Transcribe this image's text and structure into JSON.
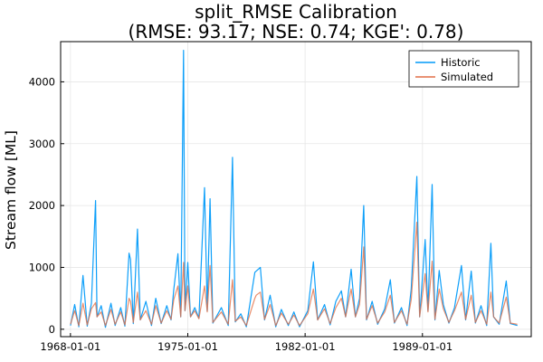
{
  "chart_data": {
    "type": "line",
    "title": "split_RMSE Calibration",
    "subtitle": "(RMSE: 93.17; NSE: 0.74; KGE': 0.78)",
    "xlabel": "",
    "ylabel": "Stream flow [ML]",
    "x_type": "date",
    "xlim": [
      "1967-06-01",
      "1995-06-30"
    ],
    "ylim": [
      -120,
      4650
    ],
    "x_ticks": [
      "1968-01-01",
      "1975-01-01",
      "1982-01-01",
      "1989-01-01"
    ],
    "x_tick_labels": [
      "1968-01-01",
      "1975-01-01",
      "1982-01-01",
      "1989-01-01"
    ],
    "y_ticks": [
      0,
      1000,
      2000,
      3000,
      4000
    ],
    "y_tick_labels": [
      "0",
      "1000",
      "2000",
      "3000",
      "4000"
    ],
    "grid": true,
    "legend": "top-right",
    "series": [
      {
        "name": "Historic",
        "color": "#009af9",
        "points": [
          [
            "1968-01-01",
            60
          ],
          [
            "1968-04-01",
            400
          ],
          [
            "1968-07-01",
            40
          ],
          [
            "1968-10-01",
            870
          ],
          [
            "1969-01-01",
            50
          ],
          [
            "1969-04-01",
            420
          ],
          [
            "1969-07-01",
            2080
          ],
          [
            "1969-08-01",
            200
          ],
          [
            "1969-11-01",
            380
          ],
          [
            "1970-02-01",
            30
          ],
          [
            "1970-06-01",
            420
          ],
          [
            "1970-09-01",
            60
          ],
          [
            "1971-01-01",
            350
          ],
          [
            "1971-04-01",
            50
          ],
          [
            "1971-07-01",
            1230
          ],
          [
            "1971-08-01",
            1130
          ],
          [
            "1971-10-01",
            90
          ],
          [
            "1972-01-01",
            1620
          ],
          [
            "1972-03-01",
            150
          ],
          [
            "1972-07-01",
            450
          ],
          [
            "1972-11-01",
            60
          ],
          [
            "1973-02-01",
            500
          ],
          [
            "1973-06-01",
            90
          ],
          [
            "1973-10-01",
            380
          ],
          [
            "1974-01-01",
            150
          ],
          [
            "1974-03-01",
            640
          ],
          [
            "1974-06-01",
            1220
          ],
          [
            "1974-08-01",
            200
          ],
          [
            "1974-10-01",
            4510
          ],
          [
            "1974-11-01",
            300
          ],
          [
            "1975-01-01",
            1080
          ],
          [
            "1975-03-01",
            200
          ],
          [
            "1975-06-01",
            350
          ],
          [
            "1975-09-01",
            180
          ],
          [
            "1976-01-01",
            2290
          ],
          [
            "1976-03-01",
            300
          ],
          [
            "1976-05-01",
            2110
          ],
          [
            "1976-07-01",
            100
          ],
          [
            "1977-01-01",
            350
          ],
          [
            "1977-06-01",
            60
          ],
          [
            "1977-09-01",
            2780
          ],
          [
            "1977-11-01",
            120
          ],
          [
            "1978-03-01",
            250
          ],
          [
            "1978-07-01",
            40
          ],
          [
            "1979-01-01",
            920
          ],
          [
            "1979-02-01",
            940
          ],
          [
            "1979-05-01",
            1000
          ],
          [
            "1979-08-01",
            150
          ],
          [
            "1979-12-01",
            550
          ],
          [
            "1980-04-01",
            40
          ],
          [
            "1980-08-01",
            320
          ],
          [
            "1981-01-01",
            60
          ],
          [
            "1981-05-01",
            280
          ],
          [
            "1981-09-01",
            40
          ],
          [
            "1982-03-01",
            300
          ],
          [
            "1982-07-01",
            1090
          ],
          [
            "1982-10-01",
            150
          ],
          [
            "1983-03-01",
            400
          ],
          [
            "1983-07-01",
            70
          ],
          [
            "1983-11-01",
            450
          ],
          [
            "1984-03-01",
            620
          ],
          [
            "1984-06-01",
            200
          ],
          [
            "1984-10-01",
            970
          ],
          [
            "1985-01-01",
            200
          ],
          [
            "1985-04-01",
            500
          ],
          [
            "1985-07-01",
            2000
          ],
          [
            "1985-09-01",
            150
          ],
          [
            "1986-01-01",
            450
          ],
          [
            "1986-05-01",
            80
          ],
          [
            "1986-10-01",
            330
          ],
          [
            "1987-02-01",
            800
          ],
          [
            "1987-05-01",
            100
          ],
          [
            "1987-10-01",
            350
          ],
          [
            "1988-02-01",
            60
          ],
          [
            "1988-05-01",
            650
          ],
          [
            "1988-09-01",
            2470
          ],
          [
            "1988-11-01",
            200
          ],
          [
            "1989-03-01",
            1450
          ],
          [
            "1989-05-01",
            300
          ],
          [
            "1989-08-01",
            2340
          ],
          [
            "1989-10-01",
            150
          ],
          [
            "1990-01-01",
            950
          ],
          [
            "1990-04-01",
            400
          ],
          [
            "1990-08-01",
            100
          ],
          [
            "1990-12-01",
            350
          ],
          [
            "1991-05-01",
            1030
          ],
          [
            "1991-08-01",
            150
          ],
          [
            "1991-12-01",
            940
          ],
          [
            "1992-03-01",
            100
          ],
          [
            "1992-07-01",
            380
          ],
          [
            "1992-11-01",
            60
          ],
          [
            "1993-02-01",
            1390
          ],
          [
            "1993-04-01",
            200
          ],
          [
            "1993-08-01",
            80
          ],
          [
            "1994-01-01",
            780
          ],
          [
            "1994-04-01",
            90
          ],
          [
            "1994-09-01",
            60
          ]
        ]
      },
      {
        "name": "Simulated",
        "color": "#e26f46",
        "points": [
          [
            "1968-01-01",
            80
          ],
          [
            "1968-04-01",
            300
          ],
          [
            "1968-07-01",
            60
          ],
          [
            "1968-10-01",
            420
          ],
          [
            "1969-01-01",
            70
          ],
          [
            "1969-04-01",
            330
          ],
          [
            "1969-07-01",
            430
          ],
          [
            "1969-08-01",
            200
          ],
          [
            "1969-11-01",
            280
          ],
          [
            "1970-02-01",
            60
          ],
          [
            "1970-06-01",
            320
          ],
          [
            "1970-09-01",
            80
          ],
          [
            "1971-01-01",
            280
          ],
          [
            "1971-04-01",
            70
          ],
          [
            "1971-07-01",
            500
          ],
          [
            "1971-08-01",
            450
          ],
          [
            "1971-10-01",
            110
          ],
          [
            "1972-01-01",
            600
          ],
          [
            "1972-03-01",
            150
          ],
          [
            "1972-07-01",
            300
          ],
          [
            "1972-11-01",
            80
          ],
          [
            "1973-02-01",
            380
          ],
          [
            "1973-06-01",
            100
          ],
          [
            "1973-10-01",
            300
          ],
          [
            "1974-01-01",
            160
          ],
          [
            "1974-03-01",
            480
          ],
          [
            "1974-06-01",
            700
          ],
          [
            "1974-08-01",
            200
          ],
          [
            "1974-10-01",
            1080
          ],
          [
            "1974-11-01",
            300
          ],
          [
            "1975-01-01",
            700
          ],
          [
            "1975-03-01",
            200
          ],
          [
            "1975-06-01",
            300
          ],
          [
            "1975-09-01",
            170
          ],
          [
            "1976-01-01",
            700
          ],
          [
            "1976-03-01",
            280
          ],
          [
            "1976-05-01",
            1030
          ],
          [
            "1976-07-01",
            110
          ],
          [
            "1977-01-01",
            280
          ],
          [
            "1977-06-01",
            80
          ],
          [
            "1977-09-01",
            800
          ],
          [
            "1977-11-01",
            130
          ],
          [
            "1978-03-01",
            200
          ],
          [
            "1978-07-01",
            60
          ],
          [
            "1979-01-01",
            500
          ],
          [
            "1979-02-01",
            550
          ],
          [
            "1979-05-01",
            600
          ],
          [
            "1979-08-01",
            160
          ],
          [
            "1979-12-01",
            400
          ],
          [
            "1980-04-01",
            60
          ],
          [
            "1980-08-01",
            260
          ],
          [
            "1981-01-01",
            80
          ],
          [
            "1981-05-01",
            230
          ],
          [
            "1981-09-01",
            60
          ],
          [
            "1982-03-01",
            250
          ],
          [
            "1982-07-01",
            650
          ],
          [
            "1982-10-01",
            150
          ],
          [
            "1983-03-01",
            330
          ],
          [
            "1983-07-01",
            90
          ],
          [
            "1983-11-01",
            350
          ],
          [
            "1984-03-01",
            500
          ],
          [
            "1984-06-01",
            200
          ],
          [
            "1984-10-01",
            650
          ],
          [
            "1985-01-01",
            200
          ],
          [
            "1985-04-01",
            400
          ],
          [
            "1985-07-01",
            1330
          ],
          [
            "1985-09-01",
            160
          ],
          [
            "1986-01-01",
            380
          ],
          [
            "1986-05-01",
            100
          ],
          [
            "1986-10-01",
            280
          ],
          [
            "1987-02-01",
            550
          ],
          [
            "1987-05-01",
            110
          ],
          [
            "1987-10-01",
            300
          ],
          [
            "1988-02-01",
            80
          ],
          [
            "1988-05-01",
            480
          ],
          [
            "1988-09-01",
            1730
          ],
          [
            "1988-11-01",
            200
          ],
          [
            "1989-03-01",
            900
          ],
          [
            "1989-05-01",
            280
          ],
          [
            "1989-08-01",
            1100
          ],
          [
            "1989-10-01",
            160
          ],
          [
            "1990-01-01",
            650
          ],
          [
            "1990-04-01",
            330
          ],
          [
            "1990-08-01",
            110
          ],
          [
            "1990-12-01",
            300
          ],
          [
            "1991-05-01",
            600
          ],
          [
            "1991-08-01",
            160
          ],
          [
            "1991-12-01",
            550
          ],
          [
            "1992-03-01",
            110
          ],
          [
            "1992-07-01",
            300
          ],
          [
            "1992-11-01",
            80
          ],
          [
            "1993-02-01",
            600
          ],
          [
            "1993-04-01",
            200
          ],
          [
            "1993-08-01",
            100
          ],
          [
            "1994-01-01",
            520
          ],
          [
            "1994-04-01",
            100
          ],
          [
            "1994-09-01",
            80
          ]
        ]
      }
    ]
  }
}
